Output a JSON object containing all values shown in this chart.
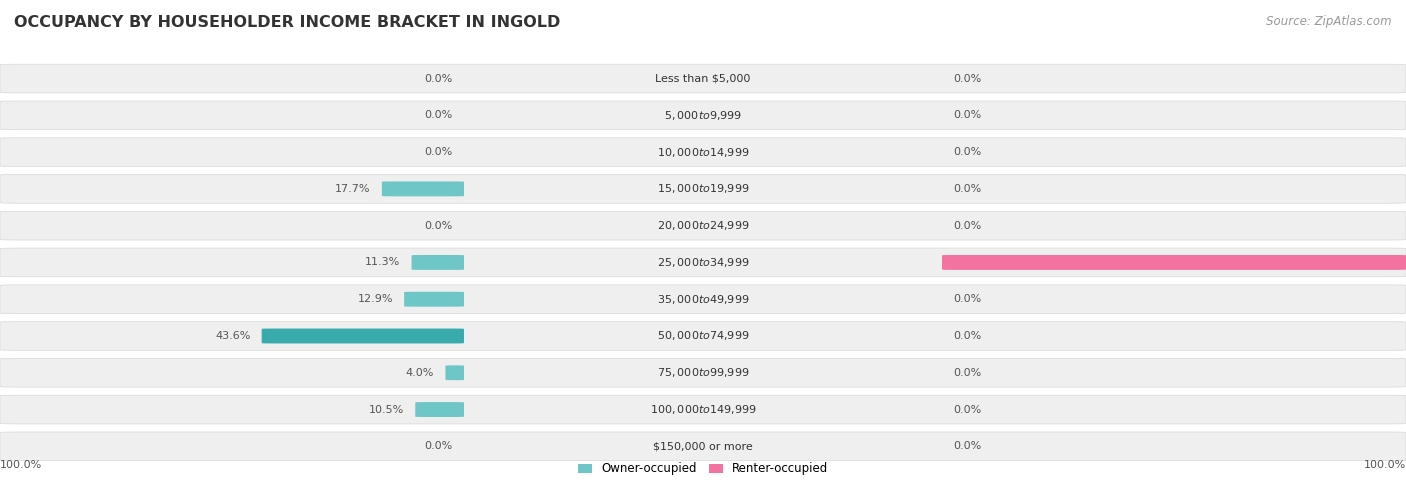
{
  "title": "OCCUPANCY BY HOUSEHOLDER INCOME BRACKET IN INGOLD",
  "source": "Source: ZipAtlas.com",
  "categories": [
    "Less than $5,000",
    "$5,000 to $9,999",
    "$10,000 to $14,999",
    "$15,000 to $19,999",
    "$20,000 to $24,999",
    "$25,000 to $34,999",
    "$35,000 to $49,999",
    "$50,000 to $74,999",
    "$75,000 to $99,999",
    "$100,000 to $149,999",
    "$150,000 or more"
  ],
  "owner_pct": [
    0.0,
    0.0,
    0.0,
    17.7,
    0.0,
    11.3,
    12.9,
    43.6,
    4.0,
    10.5,
    0.0
  ],
  "renter_pct": [
    0.0,
    0.0,
    0.0,
    0.0,
    0.0,
    100.0,
    0.0,
    0.0,
    0.0,
    0.0,
    0.0
  ],
  "owner_color_normal": "#6ec6c7",
  "owner_color_dark": "#3aabac",
  "renter_color_normal": "#f9b8cc",
  "renter_color_dark": "#f472a0",
  "bg_row_color": "#efefef",
  "title_fontsize": 11.5,
  "source_fontsize": 8.5,
  "label_fontsize": 8,
  "category_fontsize": 8,
  "legend_labels": [
    "Owner-occupied",
    "Renter-occupied"
  ],
  "bottom_left_label": "100.0%",
  "bottom_right_label": "100.0%"
}
